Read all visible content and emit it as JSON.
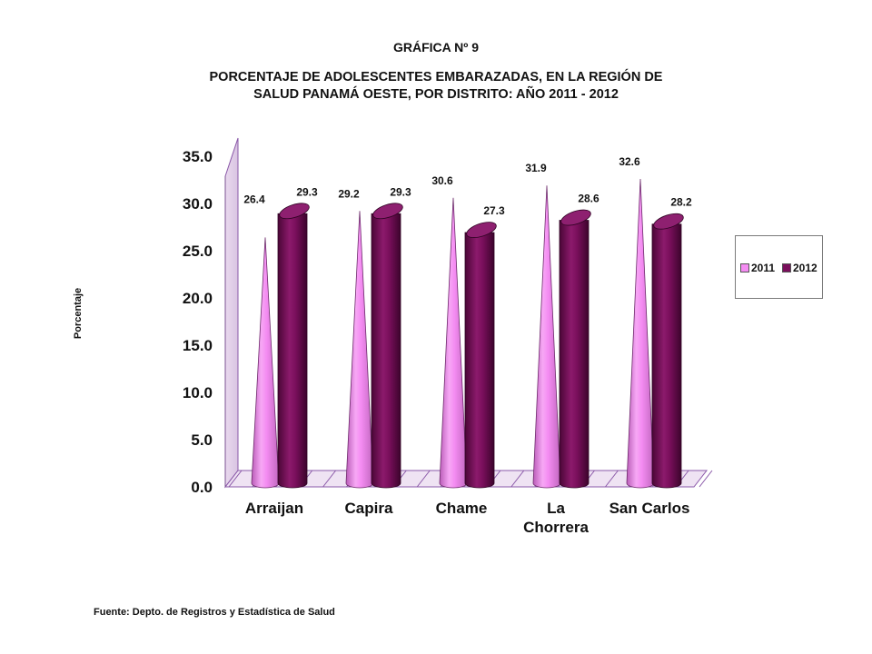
{
  "header": {
    "chart_number": "GRÁFICA Nº 9",
    "title_line1": "PORCENTAJE DE ADOLESCENTES EMBARAZADAS, EN LA REGIÓN DE",
    "title_line2": "SALUD PANAMÁ OESTE, POR DISTRITO: AÑO  2011 - 2012"
  },
  "footer": {
    "source": "Fuente: Depto. de Registros y Estadística de Salud"
  },
  "chart_data": {
    "type": "bar",
    "title": "PORCENTAJE DE ADOLESCENTES EMBARAZADAS, EN LA REGIÓN DE SALUD PANAMÁ OESTE, POR DISTRITO: AÑO  2011 - 2012",
    "xlabel": "",
    "ylabel": "Porcentaje",
    "categories": [
      "Arraijan",
      "Capira",
      "Chame",
      "La Chorrera",
      "San Carlos"
    ],
    "category_lines": [
      [
        "Arraijan"
      ],
      [
        "Capira"
      ],
      [
        "Chame"
      ],
      [
        "La",
        "Chorrera"
      ],
      [
        "San Carlos"
      ]
    ],
    "series": [
      {
        "name": "2011",
        "values": [
          26.4,
          29.2,
          30.6,
          31.9,
          32.6
        ],
        "color": "#f48cf2",
        "shape": "cone"
      },
      {
        "name": "2012",
        "values": [
          29.3,
          29.3,
          27.3,
          28.6,
          28.2
        ],
        "color": "#7a0f5c",
        "shape": "cylinder"
      }
    ],
    "ylim": [
      0,
      35
    ],
    "yticks": [
      "0.0",
      "5.0",
      "10.0",
      "15.0",
      "20.0",
      "25.0",
      "30.0",
      "35.0"
    ],
    "data_labels": [
      [
        "26.4",
        "29.2",
        "30.6",
        "31.9",
        "32.6"
      ],
      [
        "29.3",
        "29.3",
        "27.3",
        "28.6",
        "28.2"
      ]
    ],
    "grid": false,
    "legend_position": "right"
  }
}
